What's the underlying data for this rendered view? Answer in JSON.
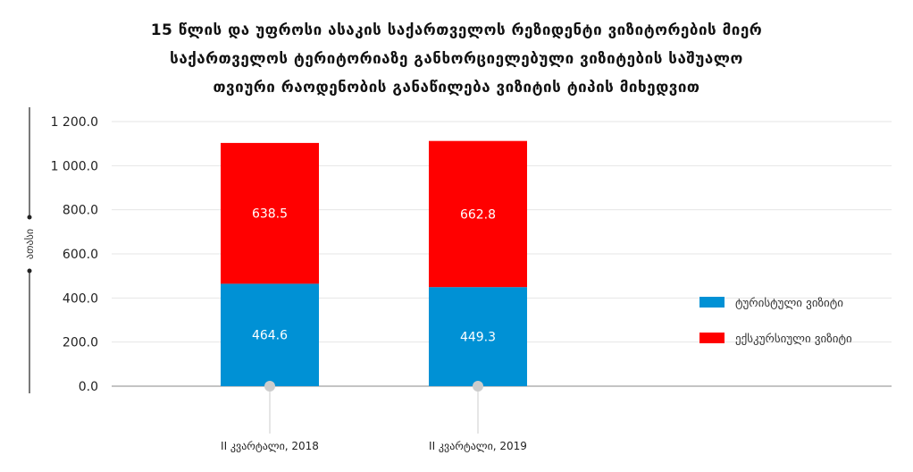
{
  "chart_data": {
    "type": "bar",
    "stacked": true,
    "title_lines": [
      "15 წლის და უფროსი ასაკის საქართველოს რეზიდენტი ვიზიტორების მიერ",
      "საქართველოს ტერიტორიაზე განხორციელებული ვიზიტების საშუალო",
      "თვიური რაოდენობის განაწილება ვიზიტის ტიპის მიხედვით"
    ],
    "ylabel": "ათასი",
    "xlabel": "",
    "ylim": [
      0,
      1200
    ],
    "yticks": [
      0,
      200,
      400,
      600,
      800,
      1000,
      1200
    ],
    "ytick_labels": [
      "0.0",
      "200.0",
      "400.0",
      "600.0",
      "800.0",
      "1 000.0",
      "1 200.0"
    ],
    "grid": true,
    "legend_position": "right",
    "categories": [
      "II კვარტალი, 2018",
      "II კვარტალი, 2019"
    ],
    "series": [
      {
        "name": "ტურისტული ვიზიტი",
        "color": "#0091d5",
        "values": [
          464.6,
          449.3
        ],
        "labels": [
          "464.6",
          "449.3"
        ]
      },
      {
        "name": "ექსკურსიული ვიზიტი",
        "color": "#ff0000",
        "values": [
          638.5,
          662.8
        ],
        "labels": [
          "638.5",
          "662.8"
        ]
      }
    ]
  }
}
